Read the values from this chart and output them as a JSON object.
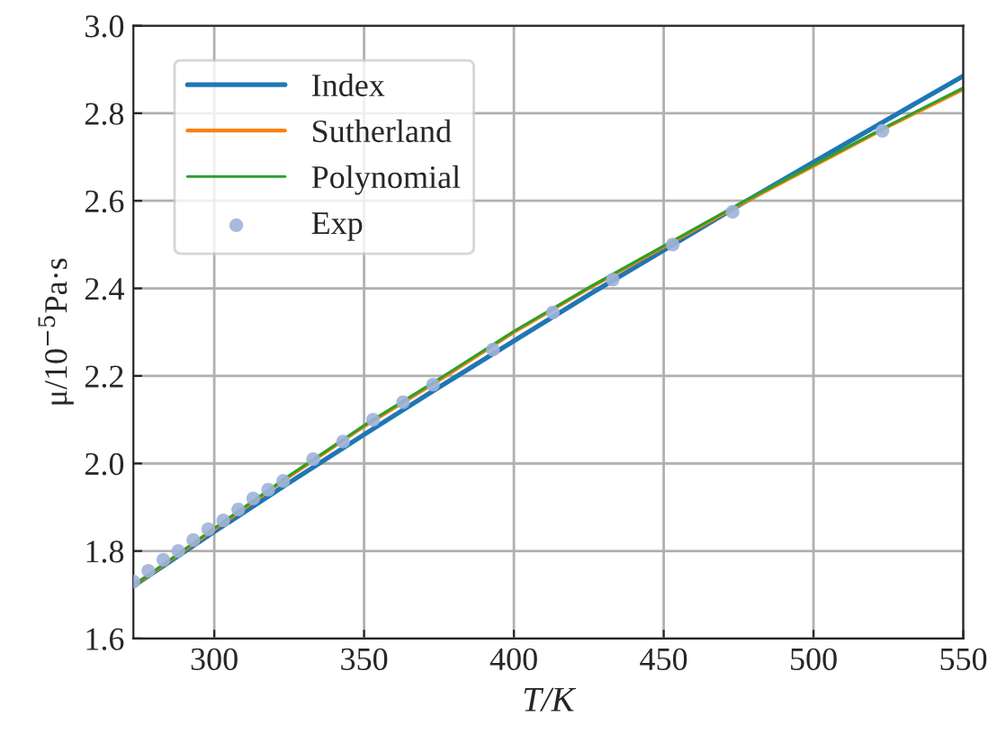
{
  "chart_data": {
    "type": "line",
    "xlabel": "T/K",
    "ylabel": "μ/10$^{−5}$Pa·s",
    "xlim": [
      273,
      550
    ],
    "xticks": [
      300,
      350,
      400,
      450,
      500,
      550
    ],
    "ylim": [
      1.6,
      3.0
    ],
    "yticks": [
      {
        "value": 1.6,
        "label": "1.6"
      },
      {
        "value": 1.8,
        "label": "1.8"
      },
      {
        "value": 2.0,
        "label": "2.0"
      },
      {
        "value": 2.2,
        "label": "2.2"
      },
      {
        "value": 2.4,
        "label": "2.4"
      },
      {
        "value": 2.6,
        "label": "2.6"
      },
      {
        "value": 2.8,
        "label": "2.8"
      },
      {
        "value": 3.0,
        "label": "3.0"
      }
    ],
    "grid": true,
    "legend": "top left",
    "series": [
      {
        "name": "Index",
        "color": "#1f77b4",
        "x": [
          273,
          300,
          325,
          350,
          375,
          400,
          425,
          450,
          475,
          500,
          525,
          550
        ],
        "values": [
          1.72,
          1.844,
          1.956,
          2.066,
          2.174,
          2.28,
          2.385,
          2.487,
          2.589,
          2.688,
          2.787,
          2.885
        ]
      },
      {
        "name": "Sutherland",
        "color": "#ff7f0e",
        "x": [
          273,
          300,
          325,
          350,
          375,
          400,
          425,
          450,
          475,
          500,
          525,
          550
        ],
        "values": [
          1.72,
          1.85,
          1.97,
          2.085,
          2.19,
          2.3,
          2.4,
          2.495,
          2.59,
          2.68,
          2.77,
          2.855
        ]
      },
      {
        "name": "Polynomial",
        "color": "#2ca02c",
        "x": [
          273,
          300,
          325,
          350,
          375,
          400,
          425,
          450,
          475,
          500,
          525,
          550
        ],
        "values": [
          1.72,
          1.852,
          1.972,
          2.087,
          2.193,
          2.302,
          2.402,
          2.497,
          2.592,
          2.682,
          2.772,
          2.858
        ]
      },
      {
        "name": "Exp",
        "type": "scatter",
        "color": "#9fb3d9",
        "marker": "circle",
        "x": [
          273,
          278,
          283,
          288,
          293,
          298,
          303,
          308,
          313,
          318,
          323,
          333,
          343,
          353,
          363,
          373,
          393,
          413,
          433,
          453,
          473,
          523
        ],
        "values": [
          1.73,
          1.755,
          1.78,
          1.8,
          1.825,
          1.85,
          1.87,
          1.895,
          1.92,
          1.94,
          1.96,
          2.01,
          2.05,
          2.1,
          2.14,
          2.18,
          2.26,
          2.345,
          2.42,
          2.5,
          2.575,
          2.76
        ]
      }
    ]
  }
}
